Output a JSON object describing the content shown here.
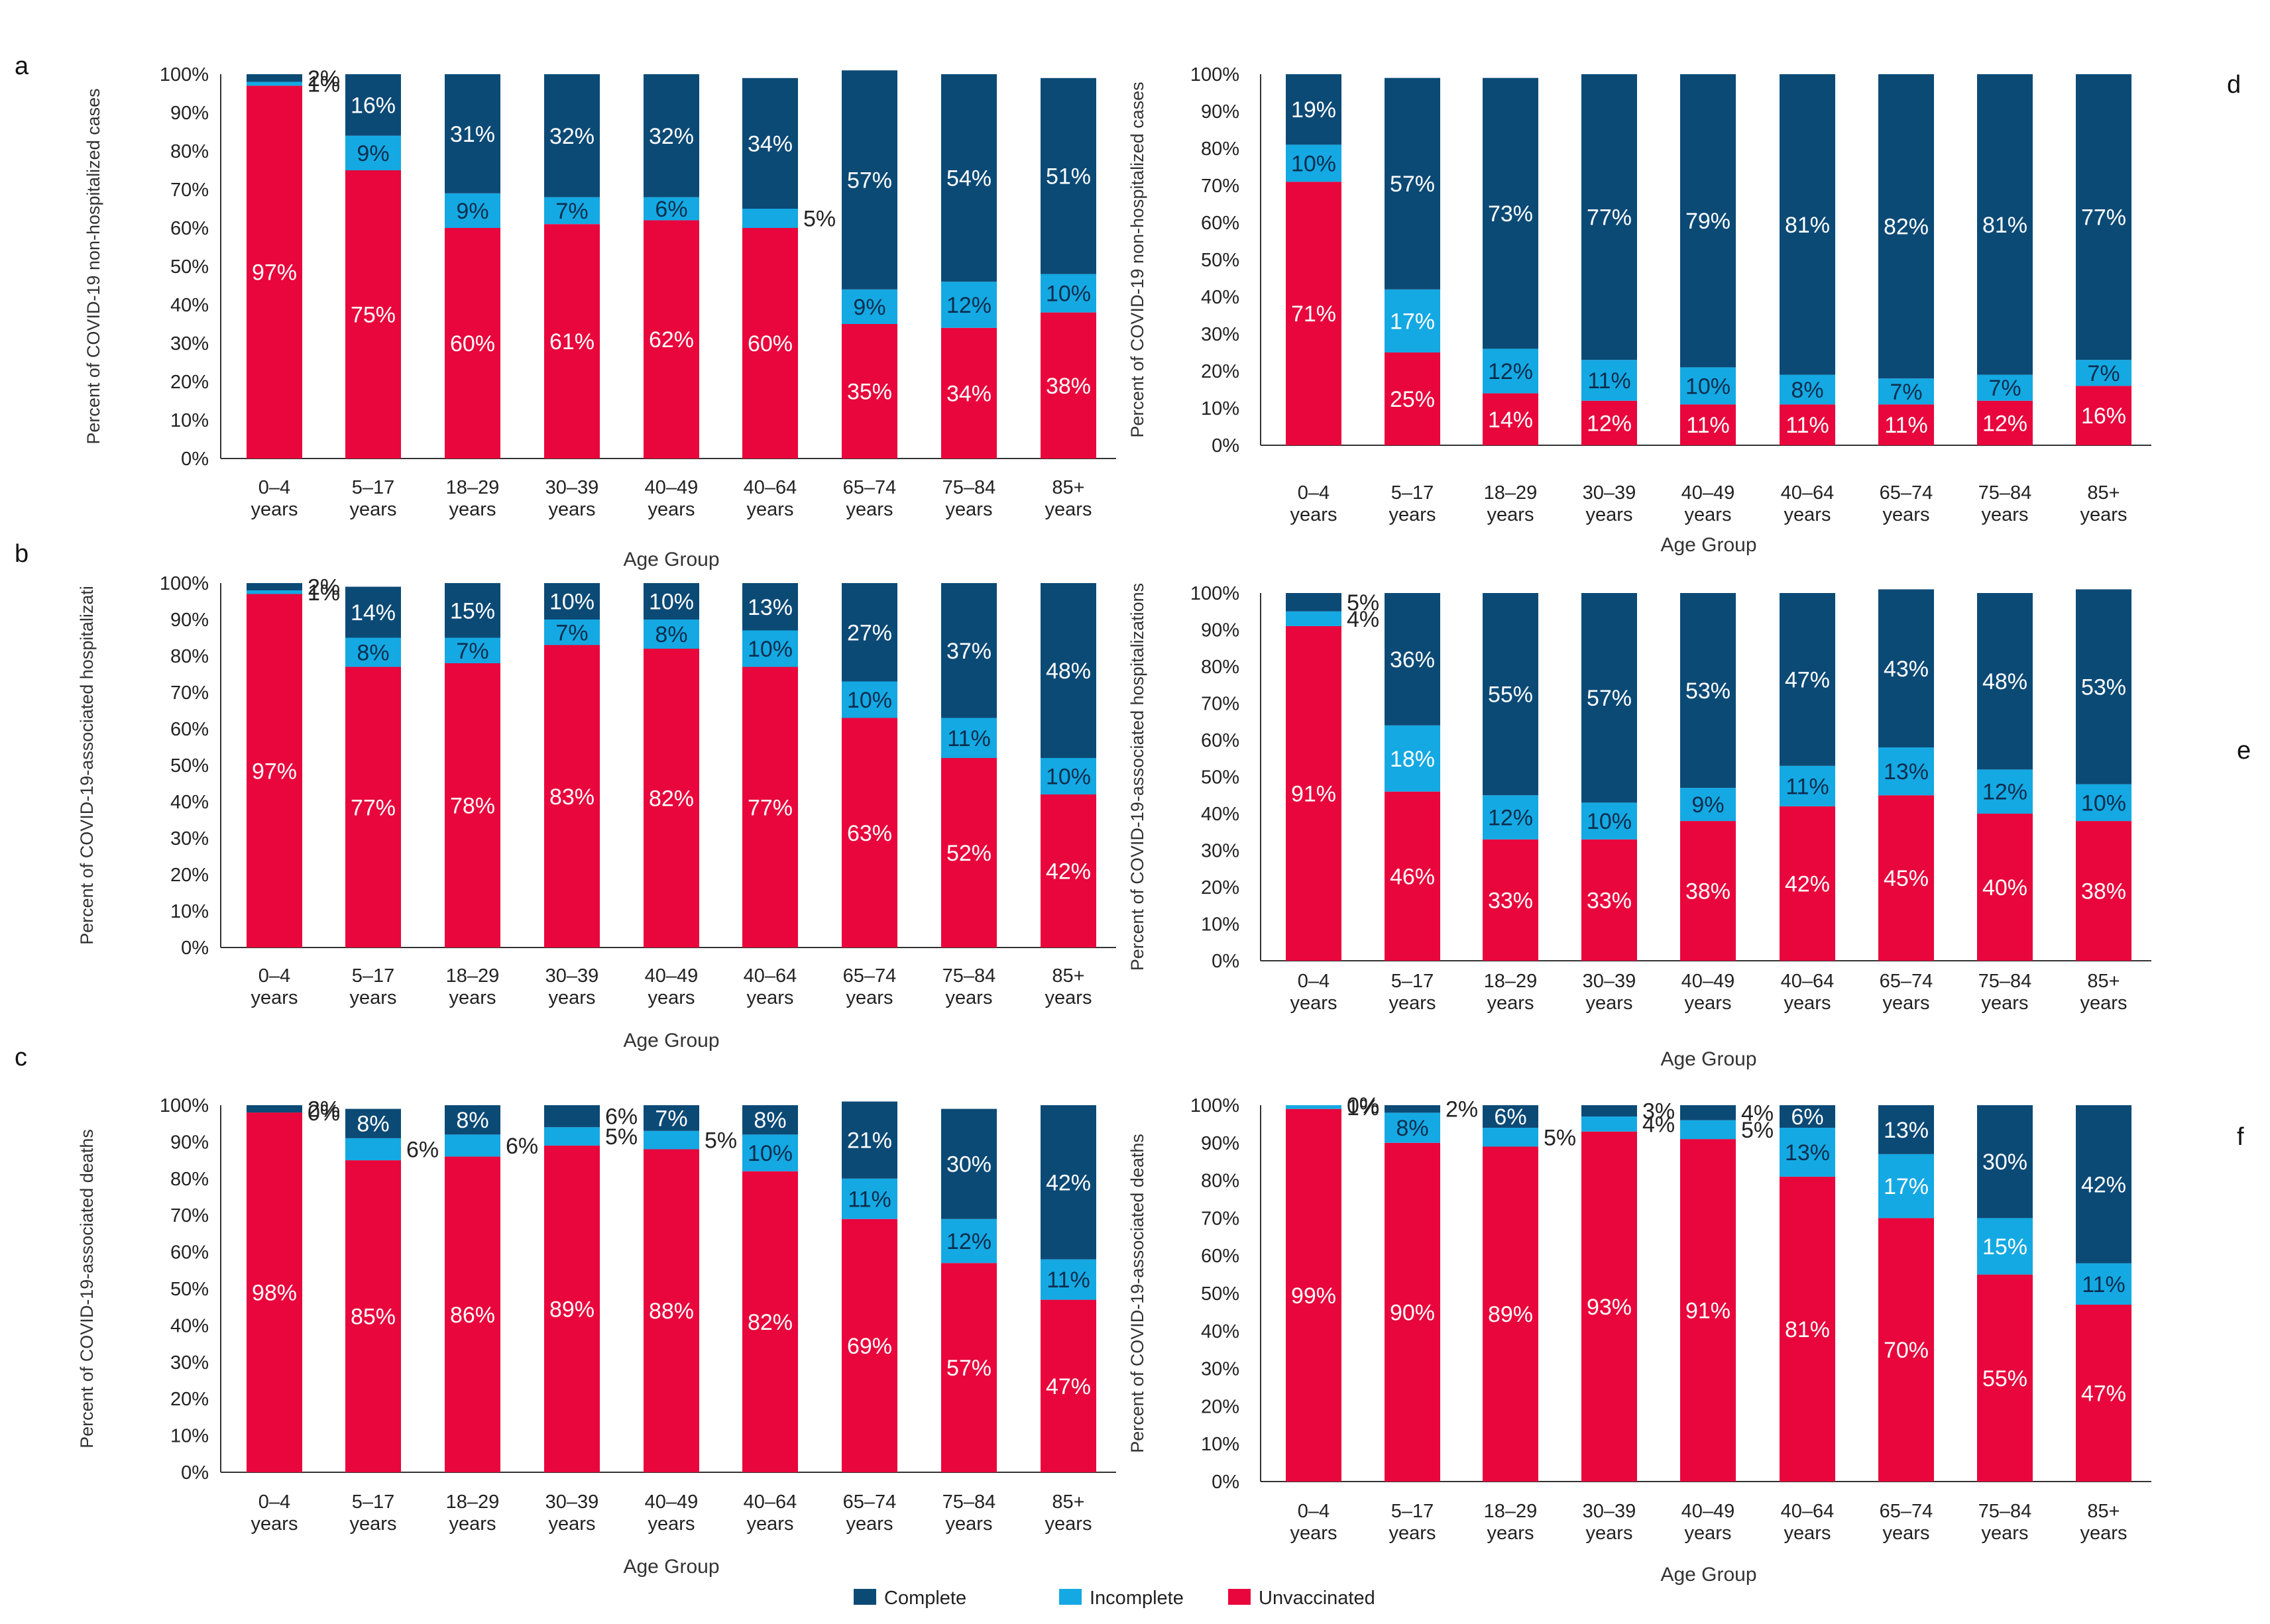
{
  "colors": {
    "complete": "#0c4a76",
    "incomplete": "#14a9e3",
    "unvaccinated": "#e8063c"
  },
  "legend": {
    "complete": "Complete",
    "incomplete": "Incomplete",
    "unvaccinated": "Unvaccinated"
  },
  "chart_data": [
    {
      "panel": "a",
      "type": "bar",
      "ylabel": "Percent of COVID-19 non-hospitalized cases",
      "xlabel": "Age Group",
      "categories": [
        [
          "0–4",
          "years"
        ],
        [
          "5–17",
          "years"
        ],
        [
          "18–29",
          "years"
        ],
        [
          "30–39",
          "years"
        ],
        [
          "40–49",
          "years"
        ],
        [
          "40–64",
          "years"
        ],
        [
          "65–74",
          "years"
        ],
        [
          "75–84",
          "years"
        ],
        [
          "85+",
          "years"
        ]
      ],
      "series": [
        {
          "name": "Unvaccinated",
          "values": [
            97,
            75,
            60,
            61,
            62,
            60,
            35,
            34,
            38
          ]
        },
        {
          "name": "Incomplete",
          "values": [
            1,
            9,
            9,
            7,
            6,
            5,
            9,
            12,
            10
          ]
        },
        {
          "name": "Complete",
          "values": [
            2,
            16,
            31,
            32,
            32,
            34,
            57,
            54,
            51
          ]
        }
      ],
      "yticks": [
        "0%",
        "10%",
        "20%",
        "30%",
        "40%",
        "50%",
        "60%",
        "70%",
        "80%",
        "90%",
        "100%"
      ],
      "ylim": [
        0,
        100
      ]
    },
    {
      "panel": "b",
      "type": "bar",
      "ylabel": "Percent of COVID-19-associated hospitalizati",
      "xlabel": "Age Group",
      "categories": [
        [
          "0–4",
          "years"
        ],
        [
          "5–17",
          "years"
        ],
        [
          "18–29",
          "years"
        ],
        [
          "30–39",
          "years"
        ],
        [
          "40–49",
          "years"
        ],
        [
          "40–64",
          "years"
        ],
        [
          "65–74",
          "years"
        ],
        [
          "75–84",
          "years"
        ],
        [
          "85+",
          "years"
        ]
      ],
      "series": [
        {
          "name": "Unvaccinated",
          "values": [
            97,
            77,
            78,
            83,
            82,
            77,
            63,
            52,
            42
          ]
        },
        {
          "name": "Incomplete",
          "values": [
            1,
            8,
            7,
            7,
            8,
            10,
            10,
            11,
            10
          ]
        },
        {
          "name": "Complete",
          "values": [
            2,
            14,
            15,
            10,
            10,
            13,
            27,
            37,
            48
          ]
        }
      ],
      "yticks": [
        "0%",
        "10%",
        "20%",
        "30%",
        "40%",
        "50%",
        "60%",
        "70%",
        "80%",
        "90%",
        "100%"
      ],
      "ylim": [
        0,
        100
      ]
    },
    {
      "panel": "c",
      "type": "bar",
      "ylabel": "Percent of COVID-19-associated deaths",
      "xlabel": "Age Group",
      "categories": [
        [
          "0–4",
          "years"
        ],
        [
          "5–17",
          "years"
        ],
        [
          "18–29",
          "years"
        ],
        [
          "30–39",
          "years"
        ],
        [
          "40–49",
          "years"
        ],
        [
          "40–64",
          "years"
        ],
        [
          "65–74",
          "years"
        ],
        [
          "75–84",
          "years"
        ],
        [
          "85+",
          "years"
        ]
      ],
      "series": [
        {
          "name": "Unvaccinated",
          "values": [
            98,
            85,
            86,
            89,
            88,
            82,
            69,
            57,
            47
          ]
        },
        {
          "name": "Incomplete",
          "values": [
            0,
            6,
            6,
            5,
            5,
            10,
            11,
            12,
            11
          ]
        },
        {
          "name": "Complete",
          "values": [
            2,
            8,
            8,
            6,
            7,
            8,
            21,
            30,
            42
          ]
        }
      ],
      "yticks": [
        "0%",
        "10%",
        "20%",
        "30%",
        "40%",
        "50%",
        "60%",
        "70%",
        "80%",
        "90%",
        "100%"
      ],
      "ylim": [
        0,
        100
      ]
    },
    {
      "panel": "d",
      "type": "bar",
      "ylabel": "Percent of COVID-19 non-hospitalized cases",
      "xlabel": "Age Group",
      "categories": [
        [
          "0–4",
          "years"
        ],
        [
          "5–17",
          "years"
        ],
        [
          "18–29",
          "years"
        ],
        [
          "30–39",
          "years"
        ],
        [
          "40–49",
          "years"
        ],
        [
          "40–64",
          "years"
        ],
        [
          "65–74",
          "years"
        ],
        [
          "75–84",
          "years"
        ],
        [
          "85+",
          "years"
        ]
      ],
      "series": [
        {
          "name": "Unvaccinated",
          "values": [
            71,
            25,
            14,
            12,
            11,
            11,
            11,
            12,
            16
          ]
        },
        {
          "name": "Incomplete",
          "values": [
            10,
            17,
            12,
            11,
            10,
            8,
            7,
            7,
            7
          ]
        },
        {
          "name": "Complete",
          "values": [
            19,
            57,
            73,
            77,
            79,
            81,
            82,
            81,
            77
          ]
        }
      ],
      "yticks": [
        "0%",
        "10%",
        "20%",
        "30%",
        "40%",
        "50%",
        "60%",
        "70%",
        "80%",
        "90%",
        "100%"
      ],
      "ylim": [
        0,
        100
      ]
    },
    {
      "panel": "e",
      "type": "bar",
      "ylabel": "Percent of COVID-19-associated hospitalizations",
      "xlabel": "Age Group",
      "categories": [
        [
          "0–4",
          "years"
        ],
        [
          "5–17",
          "years"
        ],
        [
          "18–29",
          "years"
        ],
        [
          "30–39",
          "years"
        ],
        [
          "40–49",
          "years"
        ],
        [
          "40–64",
          "years"
        ],
        [
          "65–74",
          "years"
        ],
        [
          "75–84",
          "years"
        ],
        [
          "85+",
          "years"
        ]
      ],
      "series": [
        {
          "name": "Unvaccinated",
          "values": [
            91,
            46,
            33,
            33,
            38,
            42,
            45,
            40,
            38
          ]
        },
        {
          "name": "Incomplete",
          "values": [
            4,
            18,
            12,
            10,
            9,
            11,
            13,
            12,
            10
          ]
        },
        {
          "name": "Complete",
          "values": [
            5,
            36,
            55,
            57,
            53,
            47,
            43,
            48,
            53
          ]
        }
      ],
      "yticks": [
        "0%",
        "10%",
        "20%",
        "30%",
        "40%",
        "50%",
        "60%",
        "70%",
        "80%",
        "90%",
        "100%"
      ],
      "ylim": [
        0,
        100
      ]
    },
    {
      "panel": "f",
      "type": "bar",
      "ylabel": "Percent of COVID-19-associated deaths",
      "xlabel": "Age Group",
      "categories": [
        [
          "0–4",
          "years"
        ],
        [
          "5–17",
          "years"
        ],
        [
          "18–29",
          "years"
        ],
        [
          "30–39",
          "years"
        ],
        [
          "40–49",
          "years"
        ],
        [
          "40–64",
          "years"
        ],
        [
          "65–74",
          "years"
        ],
        [
          "75–84",
          "years"
        ],
        [
          "85+",
          "years"
        ]
      ],
      "series": [
        {
          "name": "Unvaccinated",
          "values": [
            99,
            90,
            89,
            93,
            91,
            81,
            70,
            55,
            47
          ]
        },
        {
          "name": "Incomplete",
          "values": [
            1,
            8,
            5,
            4,
            5,
            13,
            17,
            15,
            11
          ]
        },
        {
          "name": "Complete",
          "values": [
            0,
            2,
            6,
            3,
            4,
            6,
            13,
            30,
            42
          ]
        }
      ],
      "yticks": [
        "0%",
        "10%",
        "20%",
        "30%",
        "40%",
        "50%",
        "60%",
        "70%",
        "80%",
        "90%",
        "100%"
      ],
      "ylim": [
        0,
        100
      ]
    }
  ]
}
